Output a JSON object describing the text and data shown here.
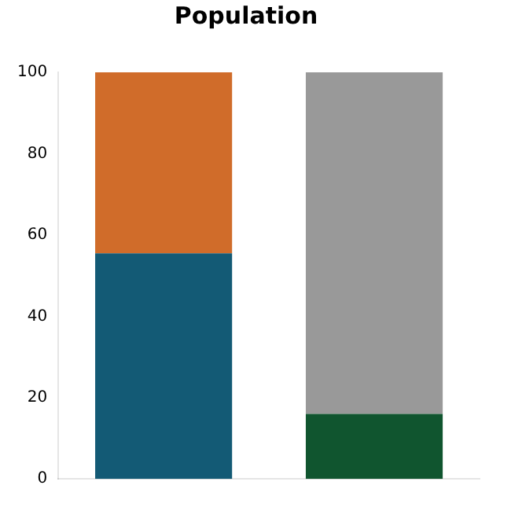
{
  "chart_data": {
    "type": "bar",
    "title": "Population",
    "categories": [
      null,
      null
    ],
    "stacked": true,
    "series": [
      {
        "values": [
          55.5,
          16
        ],
        "colors": [
          "#135a75",
          "#10552f"
        ]
      },
      {
        "values": [
          44.5,
          84
        ],
        "colors": [
          "#d06c2a",
          "#999999"
        ]
      }
    ],
    "ylim": [
      0,
      100
    ],
    "yticks": [
      0,
      20,
      40,
      60,
      80,
      100
    ],
    "grid": false,
    "legend": false
  }
}
